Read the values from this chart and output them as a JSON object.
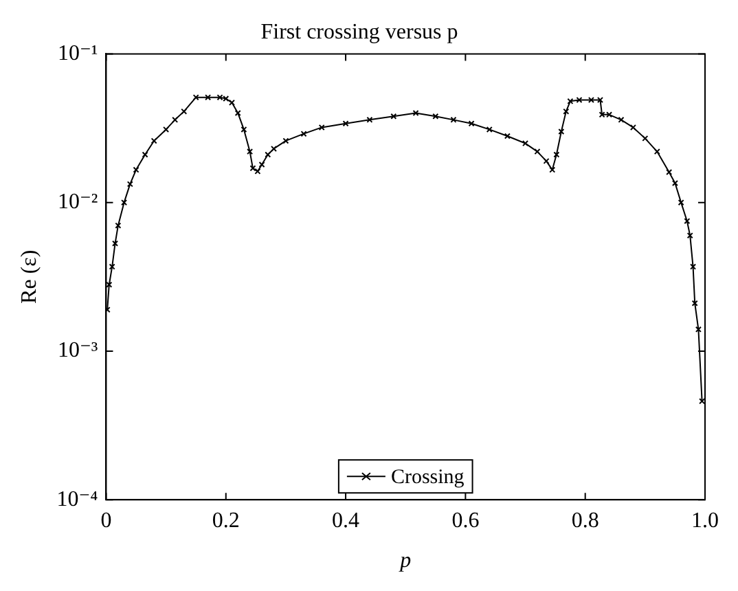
{
  "chart_data": {
    "type": "line",
    "title": "First crossing versus p",
    "xlabel": "p",
    "ylabel": "Re (ε)",
    "log": "y",
    "grid": false,
    "legend": "bottom",
    "marker": "cross",
    "line_style": "solid",
    "xlim": [
      0,
      1
    ],
    "xticks": [
      0,
      0.2,
      0.4,
      0.6,
      0.8,
      {
        "value": 1,
        "label": "1.0"
      }
    ],
    "ylim": [
      0.0001,
      0.1
    ],
    "yticks": [
      {
        "value": 0.0001,
        "label": "10⁻⁴"
      },
      {
        "value": 0.001,
        "label": "10⁻³"
      },
      {
        "value": 0.01,
        "label": "10⁻²"
      },
      {
        "value": 0.1,
        "label": "10⁻¹"
      }
    ],
    "series": [
      {
        "name": "Crossing",
        "color": "#000000",
        "x": [
          0.002,
          0.005,
          0.01,
          0.015,
          0.02,
          0.03,
          0.04,
          0.05,
          0.065,
          0.08,
          0.1,
          0.115,
          0.13,
          0.15,
          0.17,
          0.19,
          0.2,
          0.21,
          0.22,
          0.23,
          0.24,
          0.245,
          0.253,
          0.26,
          0.27,
          0.28,
          0.3,
          0.33,
          0.36,
          0.4,
          0.44,
          0.48,
          0.517,
          0.55,
          0.58,
          0.61,
          0.64,
          0.67,
          0.7,
          0.72,
          0.735,
          0.745,
          0.752,
          0.76,
          0.768,
          0.775,
          0.79,
          0.81,
          0.825,
          0.828,
          0.84,
          0.86,
          0.88,
          0.9,
          0.92,
          0.94,
          0.95,
          0.96,
          0.97,
          0.975,
          0.98,
          0.983,
          0.989,
          0.995
        ],
        "values": [
          0.0019,
          0.0028,
          0.0037,
          0.0053,
          0.007,
          0.01,
          0.0133,
          0.0166,
          0.021,
          0.026,
          0.031,
          0.036,
          0.041,
          0.051,
          0.051,
          0.051,
          0.05,
          0.047,
          0.04,
          0.031,
          0.022,
          0.017,
          0.0162,
          0.018,
          0.021,
          0.023,
          0.026,
          0.029,
          0.032,
          0.034,
          0.036,
          0.038,
          0.04,
          0.038,
          0.036,
          0.034,
          0.031,
          0.028,
          0.025,
          0.022,
          0.019,
          0.0166,
          0.021,
          0.03,
          0.041,
          0.048,
          0.049,
          0.049,
          0.049,
          0.039,
          0.039,
          0.036,
          0.032,
          0.027,
          0.022,
          0.016,
          0.0135,
          0.01,
          0.0075,
          0.006,
          0.0037,
          0.0021,
          0.0014,
          0.00046
        ]
      }
    ]
  }
}
